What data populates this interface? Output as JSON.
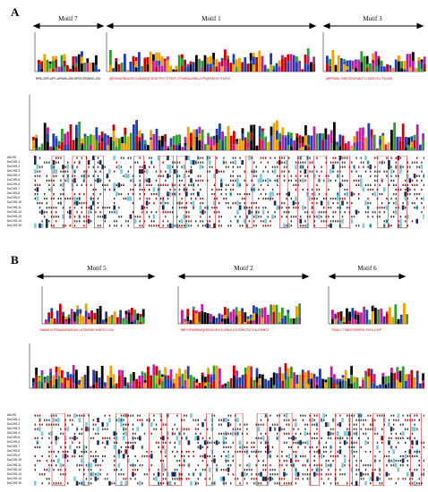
{
  "panels": [
    {
      "label": "A",
      "motifs": [
        "Motif 7",
        "Motif 1",
        "Motif 3"
      ],
      "consensus_motif_7": "MPNLIKPLAPFLAPKAHLASKIRPSVTKSNKSLISD",
      "consensus_motif_1": "QNFVHVNTNEAIEVTLEKAGEQFIEIHTFHYTIYSEPLTPVHKGWLMHKLVVPGQPSRYAYYFAPLH",
      "consensus_motif_3": "AMPPGGNLTVNSTSEGPSWCFIIIGGEVYLLTVLEAE",
      "sequence_names": [
        "AtCHS",
        "DoCHS-1",
        "DoCHS-2",
        "DoCHS-3",
        "DoCHS-4",
        "DoCHS-5",
        "DoCHS-6",
        "DoCHS-7",
        "DoCHS-8",
        "DoCHS-9",
        "DoCHS-10",
        "DoCHS-11",
        "DoCHS-12",
        "DoCHS-13",
        "DoCHS-14",
        "DoCHS-15"
      ]
    },
    {
      "label": "B",
      "motifs": [
        "Motif 5",
        "Motif 2",
        "Motif 6"
      ],
      "consensus_motif_5": "INNAALVLPSDAAGKGWVEAVLLATSKGVNLVKNRSCLLEA",
      "consensus_motif_2": "NMFYVPNNGRAEQVDEGGLKPAILASHVLAIVGSMSTGIYEALEGMKIE",
      "consensus_motif_6": "TVGGLLTTGWILPGEKPGLIVVVLLRVP",
      "sequence_names": [
        "AtCHS",
        "DoCHS-1",
        "DoCHS-2",
        "DoCHS-3",
        "DoCHS-4",
        "DoCHS-5",
        "DoCHS-6",
        "DoCHS-7",
        "DoCHS-8",
        "DoCHS-9",
        "DoCHS-10",
        "DoCHS-11",
        "DoCHS-12",
        "DoCHS-13",
        "DoCHS-14",
        "DoCHS-15"
      ]
    }
  ],
  "colors": {
    "red_text": "#cc0000",
    "blue": "#1f3fb0",
    "green": "#2f9e2f",
    "orange": "#f0a000",
    "magenta": "#c020a0",
    "cyan_box": "#7ec8d8",
    "dark_box": "#1a2a5a"
  }
}
